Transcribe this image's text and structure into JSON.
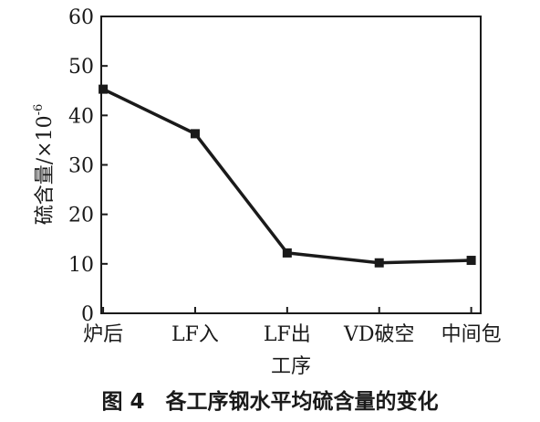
{
  "chart_data": {
    "type": "line",
    "categories": [
      "炉后",
      "LF入",
      "LF出",
      "VD破空",
      "中间包"
    ],
    "values": [
      45.3,
      36.3,
      12.2,
      10.2,
      10.7
    ],
    "xlabel": "工序",
    "ylabel": "硫含量/×10",
    "ylabel_exponent": "-6",
    "ylim": [
      0,
      60
    ],
    "yticks": [
      "0",
      "10",
      "20",
      "30",
      "40",
      "50",
      "60"
    ],
    "grid": false,
    "caption": "图 4　各工序钢水平均硫含量的变化",
    "line_color": "#1a1a1a"
  }
}
